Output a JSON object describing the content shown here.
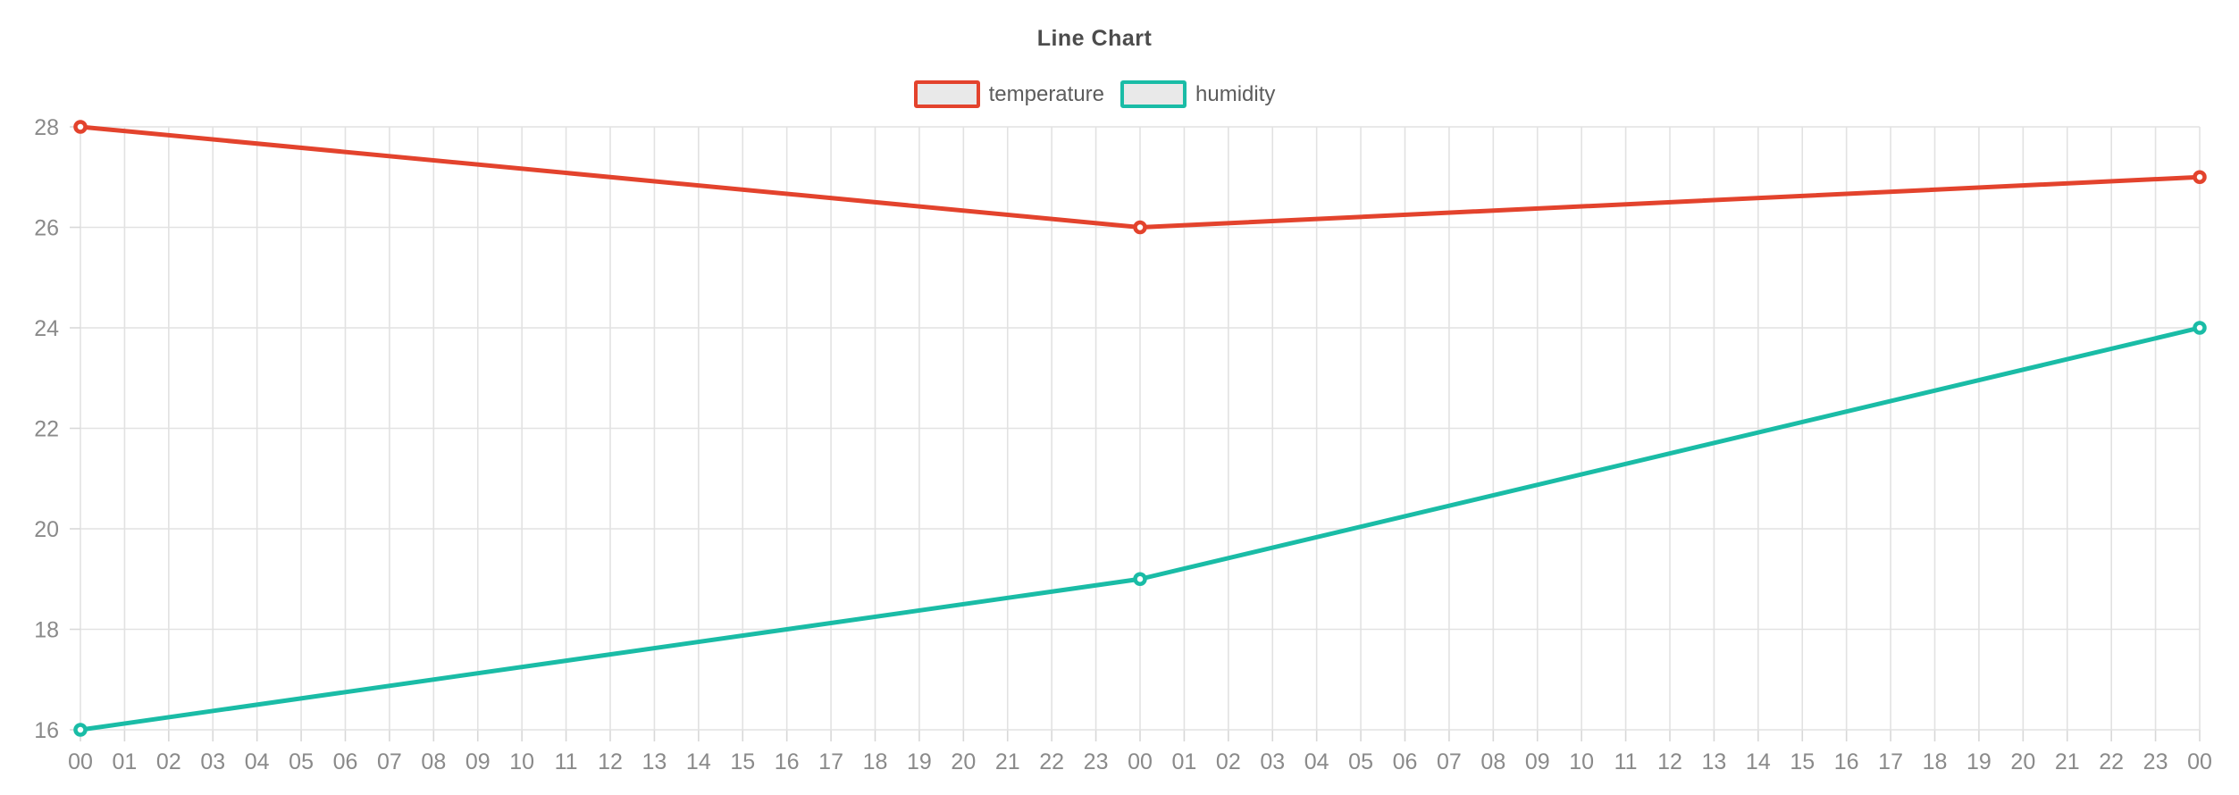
{
  "chart_data": {
    "type": "line",
    "title": "Line Chart",
    "legend_position": "top",
    "grid": true,
    "x_axis": {
      "tick_labels": [
        "00",
        "01",
        "02",
        "03",
        "04",
        "05",
        "06",
        "07",
        "08",
        "09",
        "10",
        "11",
        "12",
        "13",
        "14",
        "15",
        "16",
        "17",
        "18",
        "19",
        "20",
        "21",
        "22",
        "23",
        "00",
        "01",
        "02",
        "03",
        "04",
        "05",
        "06",
        "07",
        "08",
        "09",
        "10",
        "11",
        "12",
        "13",
        "14",
        "15",
        "16",
        "17",
        "18",
        "19",
        "20",
        "21",
        "22",
        "23",
        "00"
      ]
    },
    "y_axis": {
      "tick_labels": [
        "16",
        "18",
        "20",
        "22",
        "24",
        "26",
        "28"
      ],
      "tick_values": [
        16,
        18,
        20,
        22,
        24,
        26,
        28
      ],
      "range": [
        16,
        28
      ]
    },
    "series": [
      {
        "name": "temperature",
        "color": "#e3432d",
        "x_tick_indices": [
          0,
          24,
          48
        ],
        "values": [
          28,
          26,
          27
        ]
      },
      {
        "name": "humidity",
        "color": "#1abca6",
        "x_tick_indices": [
          0,
          24,
          48
        ],
        "values": [
          16,
          19,
          24
        ]
      }
    ]
  },
  "style": {
    "background": "#ffffff",
    "grid_color": "#e2e2e2",
    "tick_color": "#d8d8d8",
    "axis_label_color": "#8a8a8a",
    "title_color": "#4c4c4c",
    "legend_text_color": "#5c5c5c",
    "legend_marker_fill": "#e9e9e9",
    "point_fill": "#ffffff"
  }
}
